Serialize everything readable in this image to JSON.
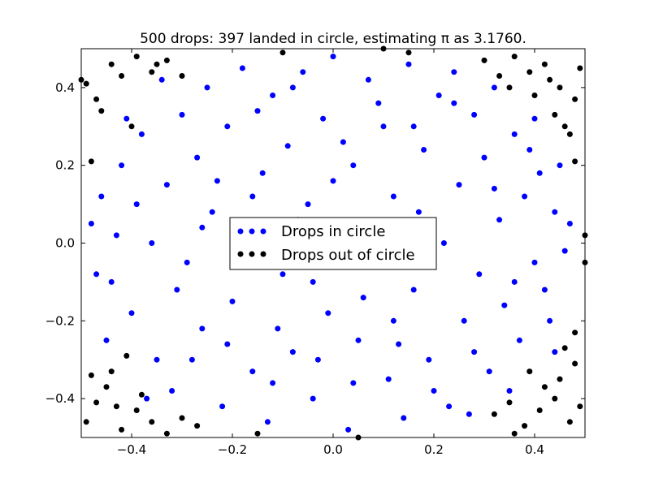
{
  "chart_data": {
    "type": "scatter",
    "title": "500 drops: 397 landed in circle, estimating π as 3.1760.",
    "xlabel": "",
    "ylabel": "",
    "xlim": [
      -0.5,
      0.5
    ],
    "ylim": [
      -0.5,
      0.5
    ],
    "x_ticks": [
      "−0.4",
      "−0.2",
      "0.0",
      "0.2",
      "0.4"
    ],
    "y_ticks": [
      "0.4",
      "0.2",
      "0.0",
      "−0.2",
      "−0.4"
    ],
    "grid": false,
    "legend_position": "center",
    "series": [
      {
        "name": "Drops in circle",
        "color": "#0000ff",
        "points": [
          [
            -0.48,
            0.05
          ],
          [
            -0.46,
            0.12
          ],
          [
            -0.44,
            -0.1
          ],
          [
            -0.42,
            0.2
          ],
          [
            -0.4,
            -0.18
          ],
          [
            -0.38,
            0.28
          ],
          [
            -0.36,
            0.0
          ],
          [
            -0.35,
            -0.3
          ],
          [
            -0.33,
            0.15
          ],
          [
            -0.32,
            -0.38
          ],
          [
            -0.3,
            0.33
          ],
          [
            -0.29,
            -0.05
          ],
          [
            -0.27,
            0.22
          ],
          [
            -0.26,
            -0.22
          ],
          [
            -0.25,
            0.4
          ],
          [
            -0.24,
            0.08
          ],
          [
            -0.22,
            -0.42
          ],
          [
            -0.21,
            0.3
          ],
          [
            -0.2,
            -0.15
          ],
          [
            -0.18,
            0.45
          ],
          [
            -0.17,
            0.02
          ],
          [
            -0.16,
            -0.33
          ],
          [
            -0.14,
            0.18
          ],
          [
            -0.13,
            -0.46
          ],
          [
            -0.12,
            0.38
          ],
          [
            -0.1,
            -0.08
          ],
          [
            -0.09,
            0.25
          ],
          [
            -0.08,
            -0.28
          ],
          [
            -0.06,
            0.44
          ],
          [
            -0.05,
            0.1
          ],
          [
            -0.04,
            -0.4
          ],
          [
            -0.02,
            0.32
          ],
          [
            -0.01,
            -0.18
          ],
          [
            0.0,
            0.48
          ],
          [
            0.01,
            0.04
          ],
          [
            0.03,
            -0.48
          ],
          [
            0.04,
            0.2
          ],
          [
            0.05,
            -0.25
          ],
          [
            0.07,
            0.42
          ],
          [
            0.08,
            -0.05
          ],
          [
            0.1,
            0.3
          ],
          [
            0.11,
            -0.35
          ],
          [
            0.12,
            0.12
          ],
          [
            0.14,
            -0.45
          ],
          [
            0.15,
            0.46
          ],
          [
            0.16,
            -0.12
          ],
          [
            0.18,
            0.24
          ],
          [
            0.19,
            -0.3
          ],
          [
            0.21,
            0.38
          ],
          [
            0.22,
            0.0
          ],
          [
            0.23,
            -0.42
          ],
          [
            0.25,
            0.15
          ],
          [
            0.26,
            -0.2
          ],
          [
            0.28,
            0.33
          ],
          [
            0.29,
            -0.08
          ],
          [
            0.3,
            0.22
          ],
          [
            0.31,
            -0.33
          ],
          [
            0.33,
            0.06
          ],
          [
            0.34,
            -0.16
          ],
          [
            0.36,
            0.28
          ],
          [
            0.37,
            -0.25
          ],
          [
            0.38,
            0.12
          ],
          [
            0.4,
            -0.05
          ],
          [
            0.41,
            0.18
          ],
          [
            0.42,
            -0.12
          ],
          [
            0.44,
            0.08
          ],
          [
            0.46,
            -0.02
          ],
          [
            0.47,
            0.05
          ],
          [
            -0.45,
            -0.25
          ],
          [
            -0.41,
            0.32
          ],
          [
            -0.37,
            -0.4
          ],
          [
            -0.34,
            0.42
          ],
          [
            -0.28,
            -0.3
          ],
          [
            -0.23,
            0.16
          ],
          [
            -0.19,
            -0.06
          ],
          [
            -0.15,
            0.34
          ],
          [
            -0.11,
            -0.22
          ],
          [
            -0.07,
            0.06
          ],
          [
            -0.03,
            -0.3
          ],
          [
            0.02,
            0.26
          ],
          [
            0.06,
            -0.14
          ],
          [
            0.09,
            0.36
          ],
          [
            0.13,
            -0.26
          ],
          [
            0.17,
            0.08
          ],
          [
            0.2,
            -0.38
          ],
          [
            0.24,
            0.44
          ],
          [
            0.27,
            -0.44
          ],
          [
            0.32,
            0.4
          ],
          [
            0.35,
            -0.38
          ],
          [
            0.39,
            0.24
          ],
          [
            0.43,
            -0.2
          ],
          [
            0.45,
            0.2
          ],
          [
            -0.47,
            -0.08
          ],
          [
            -0.43,
            0.02
          ],
          [
            -0.39,
            0.1
          ],
          [
            -0.31,
            -0.12
          ],
          [
            -0.26,
            0.04
          ],
          [
            -0.21,
            -0.26
          ],
          [
            -0.16,
            0.12
          ],
          [
            -0.12,
            -0.36
          ],
          [
            -0.08,
            0.4
          ],
          [
            -0.04,
            -0.1
          ],
          [
            0.0,
            0.16
          ],
          [
            0.04,
            -0.36
          ],
          [
            0.08,
            0.02
          ],
          [
            0.12,
            -0.2
          ],
          [
            0.16,
            0.3
          ],
          [
            0.2,
            -0.06
          ],
          [
            0.24,
            0.36
          ],
          [
            0.28,
            -0.28
          ],
          [
            0.32,
            0.14
          ],
          [
            0.36,
            -0.1
          ],
          [
            0.4,
            0.32
          ],
          [
            0.44,
            -0.28
          ]
        ]
      },
      {
        "name": "Drops out of circle",
        "color": "#000000",
        "points": [
          [
            -0.49,
            0.41
          ],
          [
            -0.47,
            0.37
          ],
          [
            -0.44,
            0.46
          ],
          [
            -0.42,
            0.43
          ],
          [
            -0.39,
            0.48
          ],
          [
            -0.36,
            0.44
          ],
          [
            -0.33,
            0.47
          ],
          [
            -0.3,
            0.43
          ],
          [
            -0.48,
            0.21
          ],
          [
            -0.46,
            0.34
          ],
          [
            -0.4,
            0.3
          ],
          [
            -0.49,
            -0.46
          ],
          [
            -0.47,
            -0.41
          ],
          [
            -0.45,
            -0.37
          ],
          [
            -0.42,
            -0.48
          ],
          [
            -0.39,
            -0.43
          ],
          [
            -0.36,
            -0.46
          ],
          [
            -0.33,
            -0.49
          ],
          [
            -0.3,
            -0.45
          ],
          [
            -0.48,
            -0.34
          ],
          [
            -0.44,
            -0.33
          ],
          [
            -0.41,
            -0.29
          ],
          [
            -0.38,
            -0.39
          ],
          [
            -0.27,
            -0.47
          ],
          [
            0.3,
            0.47
          ],
          [
            0.33,
            0.43
          ],
          [
            0.36,
            0.48
          ],
          [
            0.39,
            0.44
          ],
          [
            0.42,
            0.46
          ],
          [
            0.45,
            0.4
          ],
          [
            0.48,
            0.37
          ],
          [
            0.49,
            0.45
          ],
          [
            0.44,
            0.33
          ],
          [
            0.47,
            0.28
          ],
          [
            0.4,
            0.38
          ],
          [
            0.35,
            0.4
          ],
          [
            0.48,
            0.21
          ],
          [
            0.46,
            0.3
          ],
          [
            0.32,
            -0.44
          ],
          [
            0.35,
            -0.41
          ],
          [
            0.38,
            -0.47
          ],
          [
            0.41,
            -0.43
          ],
          [
            0.44,
            -0.4
          ],
          [
            0.47,
            -0.46
          ],
          [
            0.49,
            -0.42
          ],
          [
            0.45,
            -0.35
          ],
          [
            0.48,
            -0.31
          ],
          [
            0.42,
            -0.37
          ],
          [
            0.39,
            -0.33
          ],
          [
            0.36,
            -0.49
          ],
          [
            0.48,
            -0.23
          ],
          [
            0.46,
            -0.27
          ],
          [
            -0.43,
            -0.42
          ],
          [
            0.5,
            -0.05
          ],
          [
            0.5,
            0.02
          ],
          [
            -0.5,
            0.42
          ],
          [
            0.43,
            0.42
          ],
          [
            -0.35,
            0.46
          ],
          [
            0.1,
            0.5
          ],
          [
            -0.1,
            0.49
          ],
          [
            0.15,
            0.49
          ],
          [
            -0.15,
            -0.49
          ],
          [
            0.05,
            -0.5
          ]
        ]
      }
    ]
  }
}
